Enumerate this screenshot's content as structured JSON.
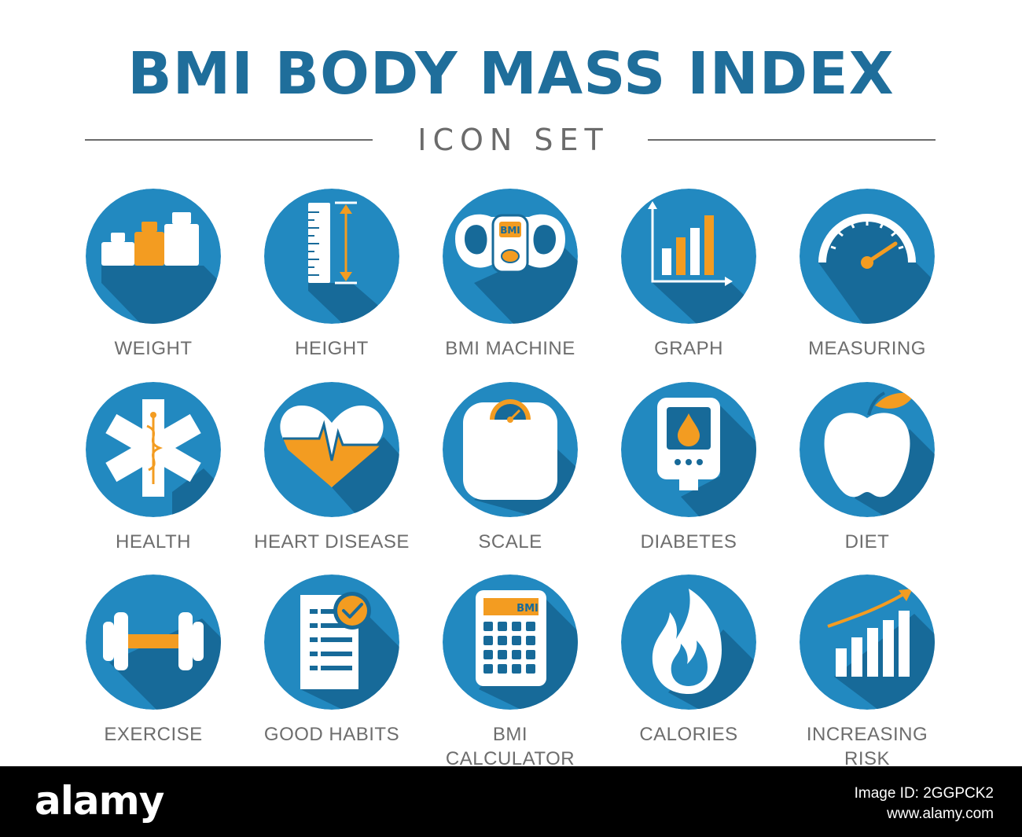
{
  "header": {
    "title": "BMI BODY MASS INDEX",
    "subtitle": "ICON SET"
  },
  "colors": {
    "title": "#1f6e9b",
    "circle": "#2289c0",
    "shadow": "#176a99",
    "accent": "#f39c21",
    "label": "#6d6d6d"
  },
  "icons": [
    {
      "label": "WEIGHT",
      "icon": "weights-icon"
    },
    {
      "label": "HEIGHT",
      "icon": "ruler-height-icon"
    },
    {
      "label": "BMI MACHINE",
      "icon": "bmi-machine-icon",
      "badge": "BMI"
    },
    {
      "label": "GRAPH",
      "icon": "bar-graph-icon"
    },
    {
      "label": "MEASURING",
      "icon": "gauge-icon"
    },
    {
      "label": "HEALTH",
      "icon": "star-of-life-icon"
    },
    {
      "label": "HEART DISEASE",
      "icon": "heart-pulse-icon"
    },
    {
      "label": "SCALE",
      "icon": "bathroom-scale-icon"
    },
    {
      "label": "DIABETES",
      "icon": "glucose-meter-icon"
    },
    {
      "label": "DIET",
      "icon": "apple-icon"
    },
    {
      "label": "EXERCISE",
      "icon": "dumbbell-icon"
    },
    {
      "label": "GOOD HABITS",
      "icon": "checklist-icon"
    },
    {
      "label": "BMI\nCALCULATOR",
      "icon": "calculator-icon",
      "badge": "BMI"
    },
    {
      "label": "CALORIES",
      "icon": "flame-icon"
    },
    {
      "label": "INCREASING\nRISK",
      "icon": "rising-chart-icon"
    }
  ],
  "footer": {
    "logo": "alamy",
    "image_id_label": "Image ID: 2GGPCK2",
    "site": "www.alamy.com"
  }
}
